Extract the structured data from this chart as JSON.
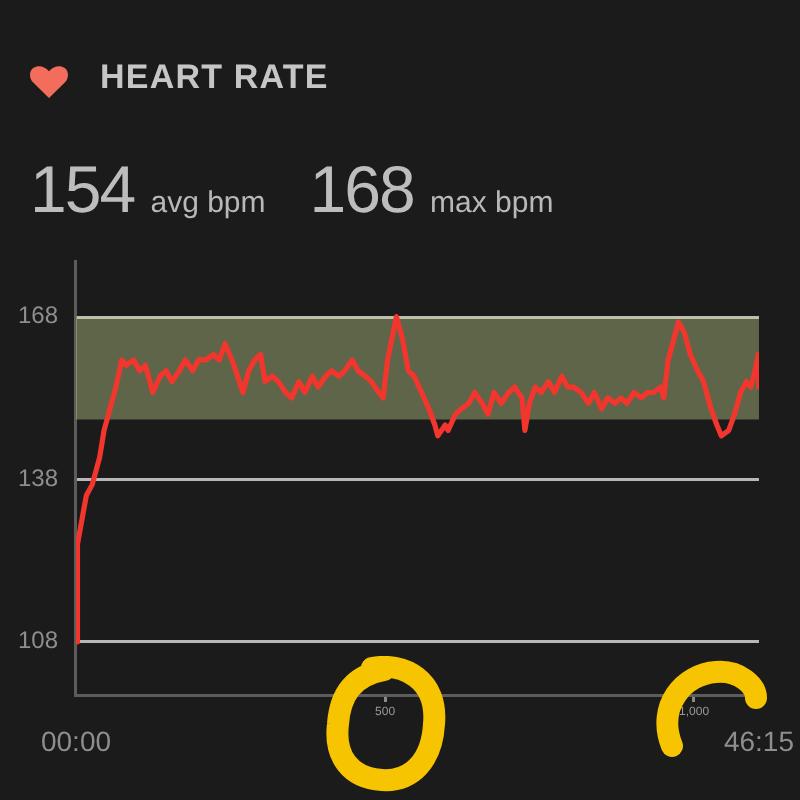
{
  "chart_data": {
    "type": "line",
    "title": "HEART RATE",
    "annotations": [
      "154 avg bpm",
      "168 max bpm"
    ],
    "x": [
      0,
      0.1,
      0.3,
      0.7,
      1.1,
      1.6,
      1.9,
      2.3,
      2.7,
      3.1,
      3.4,
      3.9,
      4.3,
      4.7,
      5.2,
      5.7,
      6.1,
      6.5,
      7.0,
      7.4,
      7.9,
      8.3,
      8.8,
      9.3,
      9.7,
      10.1,
      10.7,
      11.3,
      11.7,
      12.1,
      12.5,
      12.8,
      13.3,
      13.7,
      14.2,
      14.6,
      15.1,
      15.5,
      16.0,
      16.4,
      16.9,
      17.3,
      17.8,
      18.2,
      18.7,
      19.1,
      19.6,
      20.0,
      20.5,
      20.8,
      21.1,
      21.4,
      21.7,
      22.1,
      22.5,
      22.9,
      23.4,
      23.9,
      24.3,
      24.5,
      25.0,
      25.2,
      25.7,
      26.1,
      26.6,
      27.0,
      27.5,
      27.9,
      28.3,
      28.8,
      29.3,
      29.7,
      30.2,
      30.4,
      30.7,
      31.1,
      31.5,
      32.0,
      32.4,
      32.9,
      33.3,
      33.7,
      34.2,
      34.7,
      35.1,
      35.6,
      36.0,
      36.5,
      36.9,
      37.3,
      37.8,
      38.3,
      38.7,
      39.1,
      39.6,
      39.8,
      40.1,
      40.5,
      40.8,
      41.2,
      41.6,
      42.1,
      42.5,
      43.0,
      43.4,
      43.7,
      44.2,
      44.6,
      45.0,
      45.4,
      45.7,
      45.9,
      46.2,
      46.25
    ],
    "series": [
      {
        "color": "#f3362d",
        "values": [
          108,
          126,
          129,
          135,
          137,
          142,
          147,
          151,
          155,
          160,
          159,
          160,
          158,
          159,
          154,
          157,
          158,
          156,
          158,
          160,
          158,
          160,
          160,
          161,
          160,
          163,
          159,
          154,
          158,
          160,
          161,
          156,
          157,
          156,
          154,
          153,
          156,
          154,
          157,
          155,
          157,
          158,
          157,
          158,
          160,
          158,
          157,
          156,
          154,
          153,
          160,
          164,
          168,
          164,
          158,
          157,
          154,
          151,
          148,
          146,
          148,
          147,
          150,
          151,
          152,
          154,
          152,
          150,
          154,
          152,
          154,
          155,
          153,
          147,
          152,
          155,
          154,
          156,
          154,
          157,
          155,
          155,
          154,
          152,
          154,
          151,
          153,
          152,
          153,
          152,
          154,
          153,
          154,
          154,
          155,
          153,
          160,
          164,
          167,
          165,
          161,
          158,
          156,
          151,
          148,
          146,
          147,
          150,
          154,
          156,
          155,
          157,
          161,
          155
        ]
      }
    ],
    "xlim": [
      0,
      46.25
    ],
    "xticks": [
      {
        "value": 0,
        "label": "00:00"
      },
      {
        "value": 46.25,
        "label": "46:15"
      }
    ],
    "x2lim": [
      0,
      1105
    ],
    "x2ticks": [
      500,
      {
        "value": 1000,
        "label": "1,000"
      }
    ],
    "ylim": [
      98,
      178
    ],
    "yticks": [
      108,
      138,
      168
    ],
    "grid": "y",
    "marker": "none",
    "line_style": "solid",
    "bands": [
      {
        "axis": "y",
        "from": 149,
        "to": 168,
        "color": "#c3d48e"
      }
    ]
  }
}
